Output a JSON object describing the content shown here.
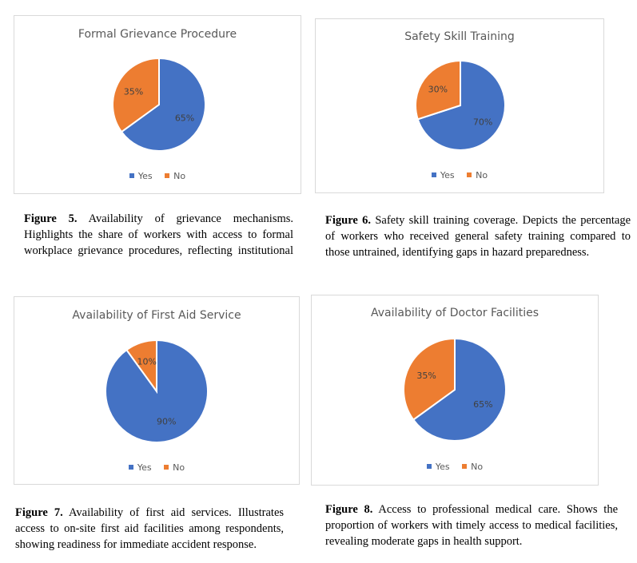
{
  "colors": {
    "yes": "#4472C4",
    "no": "#ED7D31"
  },
  "legend": {
    "yes": "Yes",
    "no": "No"
  },
  "chart_data": [
    {
      "type": "pie",
      "title": "Formal Grievance Procedure",
      "slices": [
        {
          "label": "Yes",
          "value": 65,
          "data_label": "65%"
        },
        {
          "label": "No",
          "value": 35,
          "data_label": "35%"
        }
      ]
    },
    {
      "type": "pie",
      "title": "Safety Skill Training",
      "slices": [
        {
          "label": "Yes",
          "value": 70,
          "data_label": "70%"
        },
        {
          "label": "No",
          "value": 30,
          "data_label": "30%"
        }
      ]
    },
    {
      "type": "pie",
      "title": "Availability of First Aid Service",
      "slices": [
        {
          "label": "Yes",
          "value": 90,
          "data_label": "90%"
        },
        {
          "label": "No",
          "value": 10,
          "data_label": "10%"
        }
      ]
    },
    {
      "type": "pie",
      "title": "Availability of Doctor Facilities",
      "slices": [
        {
          "label": "Yes",
          "value": 65,
          "data_label": "65%"
        },
        {
          "label": "No",
          "value": 35,
          "data_label": "35%"
        }
      ]
    }
  ],
  "captions": [
    {
      "label": "Figure 5.",
      "lines": [
        "Availability of grievance mechanisms.",
        "Highlights the share of workers with access to formal",
        "workplace grievance procedures, reflecting institutional"
      ]
    },
    {
      "label": "Figure 6.",
      "lines": [
        "Safety skill training coverage. Depicts the percentage",
        "of workers who received general safety training compared to",
        "those untrained, identifying gaps in hazard preparedness."
      ]
    },
    {
      "label": "Figure 7.",
      "lines": [
        "Availability of first aid services. Illustrates",
        "access to on-site first aid facilities among respondents,",
        "showing readiness for immediate accident response."
      ]
    },
    {
      "label": "Figure 8.",
      "lines": [
        "Access to professional medical care. Shows the",
        "proportion of workers with timely access to medical facilities,",
        "revealing moderate gaps in health support."
      ]
    }
  ]
}
